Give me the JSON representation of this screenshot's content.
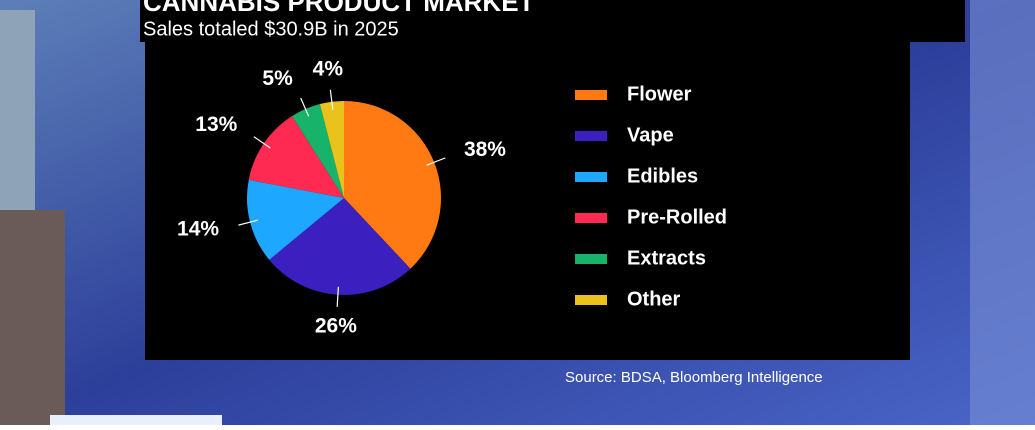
{
  "chart_data": {
    "type": "pie",
    "title": "CANNABIS PRODUCT MARKET",
    "subtitle": "Sales totaled $30.9B in 2025",
    "categories": [
      "Flower",
      "Vape",
      "Edibles",
      "Pre-Rolled",
      "Extracts",
      "Other"
    ],
    "values": [
      38,
      26,
      14,
      13,
      5,
      4
    ],
    "value_labels": [
      "38%",
      "26%",
      "14%",
      "13%",
      "5%",
      "4%"
    ],
    "colors": [
      "#ff7a12",
      "#3b1fbf",
      "#1ea7ff",
      "#ff2a52",
      "#17b36b",
      "#e9c31c"
    ],
    "legend": "right",
    "source": "Source: BDSA, Bloomberg Intelligence"
  }
}
